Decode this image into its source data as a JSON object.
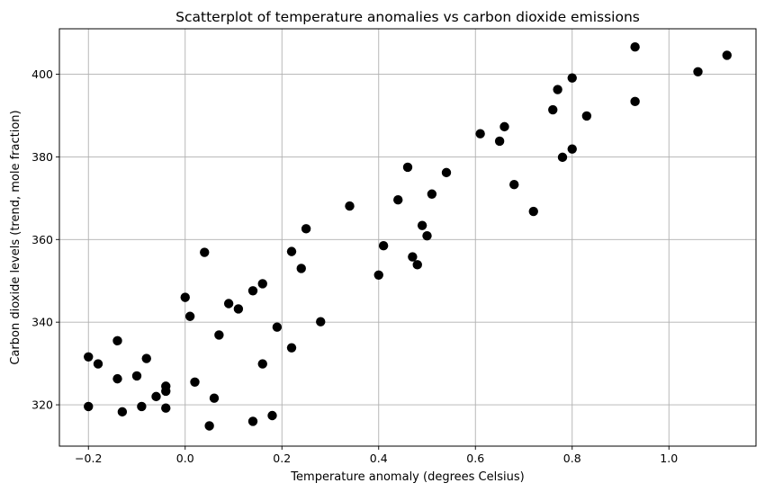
{
  "chart_data": {
    "type": "scatter",
    "title": "Scatterplot of temperature anomalies vs carbon dioxide emissions",
    "xlabel": "Temperature anomaly (degrees Celsius)",
    "ylabel": "Carbon dioxide levels (trend, mole fraction)",
    "xlim": [
      -0.26,
      1.18
    ],
    "ylim": [
      310,
      411
    ],
    "xticks": [
      -0.2,
      0.0,
      0.2,
      0.4,
      0.6,
      0.8,
      1.0
    ],
    "xtick_labels": [
      "−0.2",
      "0.0",
      "0.2",
      "0.4",
      "0.6",
      "0.8",
      "1.0"
    ],
    "yticks": [
      320,
      340,
      360,
      380,
      400
    ],
    "ytick_labels": [
      "320",
      "340",
      "360",
      "380",
      "400"
    ],
    "grid": true,
    "marker_color": "#000000",
    "points": [
      {
        "x": -0.2,
        "y": 331.6
      },
      {
        "x": -0.2,
        "y": 319.6
      },
      {
        "x": -0.18,
        "y": 329.9
      },
      {
        "x": -0.14,
        "y": 335.5
      },
      {
        "x": -0.14,
        "y": 326.3
      },
      {
        "x": -0.13,
        "y": 318.3
      },
      {
        "x": -0.1,
        "y": 327.0
      },
      {
        "x": -0.09,
        "y": 319.6
      },
      {
        "x": -0.08,
        "y": 331.2
      },
      {
        "x": -0.06,
        "y": 322.0
      },
      {
        "x": -0.04,
        "y": 324.5
      },
      {
        "x": -0.04,
        "y": 323.3
      },
      {
        "x": -0.04,
        "y": 319.2
      },
      {
        "x": 0.0,
        "y": 346.0
      },
      {
        "x": 0.01,
        "y": 341.4
      },
      {
        "x": 0.02,
        "y": 325.5
      },
      {
        "x": 0.04,
        "y": 356.9
      },
      {
        "x": 0.05,
        "y": 314.9
      },
      {
        "x": 0.06,
        "y": 321.6
      },
      {
        "x": 0.07,
        "y": 336.9
      },
      {
        "x": 0.09,
        "y": 344.5
      },
      {
        "x": 0.11,
        "y": 343.2
      },
      {
        "x": 0.14,
        "y": 347.6
      },
      {
        "x": 0.14,
        "y": 316.0
      },
      {
        "x": 0.16,
        "y": 349.3
      },
      {
        "x": 0.16,
        "y": 329.9
      },
      {
        "x": 0.18,
        "y": 317.4
      },
      {
        "x": 0.19,
        "y": 338.8
      },
      {
        "x": 0.22,
        "y": 357.1
      },
      {
        "x": 0.22,
        "y": 333.8
      },
      {
        "x": 0.24,
        "y": 353.0
      },
      {
        "x": 0.25,
        "y": 362.6
      },
      {
        "x": 0.28,
        "y": 340.1
      },
      {
        "x": 0.34,
        "y": 368.1
      },
      {
        "x": 0.4,
        "y": 351.4
      },
      {
        "x": 0.41,
        "y": 358.5
      },
      {
        "x": 0.44,
        "y": 369.6
      },
      {
        "x": 0.46,
        "y": 377.5
      },
      {
        "x": 0.47,
        "y": 355.8
      },
      {
        "x": 0.48,
        "y": 353.9
      },
      {
        "x": 0.49,
        "y": 363.4
      },
      {
        "x": 0.5,
        "y": 360.9
      },
      {
        "x": 0.51,
        "y": 371.0
      },
      {
        "x": 0.54,
        "y": 376.2
      },
      {
        "x": 0.61,
        "y": 385.6
      },
      {
        "x": 0.65,
        "y": 383.8
      },
      {
        "x": 0.66,
        "y": 387.3
      },
      {
        "x": 0.68,
        "y": 373.3
      },
      {
        "x": 0.72,
        "y": 366.8
      },
      {
        "x": 0.76,
        "y": 391.4
      },
      {
        "x": 0.77,
        "y": 396.3
      },
      {
        "x": 0.78,
        "y": 379.9
      },
      {
        "x": 0.8,
        "y": 399.1
      },
      {
        "x": 0.8,
        "y": 381.9
      },
      {
        "x": 0.83,
        "y": 389.9
      },
      {
        "x": 0.93,
        "y": 406.6
      },
      {
        "x": 0.93,
        "y": 393.4
      },
      {
        "x": 1.06,
        "y": 400.6
      },
      {
        "x": 1.12,
        "y": 404.6
      }
    ]
  }
}
